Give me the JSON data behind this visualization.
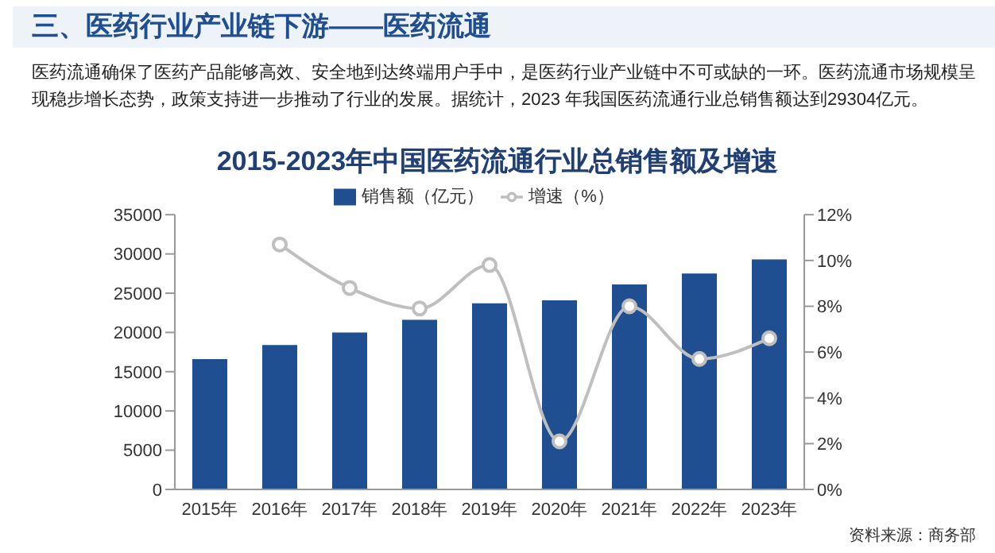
{
  "chart_data": {
    "type": "bar",
    "title": "2015-2023年中国医药流通行业总销售额及增速",
    "annotations": [
      "三、医药行业产业链下游——医药流通",
      "医药流通确保了医药产品能够高效、安全地到达终端用户手中，是医药行业产业链中不可或缺的一环。医药流通市场规模呈现稳步增长态势，政策支持进一步推动了行业的发展。据统计，2023 年我国医药流通行业总销售额达到29304亿元。",
      "资料来源：商务部"
    ],
    "categories": [
      "2015年",
      "2016年",
      "2017年",
      "2018年",
      "2019年",
      "2020年",
      "2021年",
      "2022年",
      "2023年"
    ],
    "series": [
      {
        "name": "销售额（亿元）",
        "color": "#1f4e91",
        "values": [
          16600,
          18400,
          20000,
          21600,
          23700,
          24100,
          26100,
          27500,
          29300
        ]
      },
      {
        "name": "增速（%）",
        "type": "line",
        "axis": "y2",
        "color": "#bfbfbf",
        "marker": "circle",
        "values": [
          null,
          10.7,
          8.8,
          7.9,
          9.8,
          2.1,
          8.0,
          5.7,
          6.6
        ]
      }
    ],
    "ylim": [
      0,
      35000
    ],
    "yticks": [
      0,
      5000,
      10000,
      15000,
      20000,
      25000,
      30000,
      35000
    ],
    "y2lim": [
      0,
      12
    ],
    "y2ticks": [
      {
        "value": 0,
        "label": "0%"
      },
      {
        "value": 2,
        "label": "2%"
      },
      {
        "value": 4,
        "label": "4%"
      },
      {
        "value": 6,
        "label": "6%"
      },
      {
        "value": 8,
        "label": "8%"
      },
      {
        "value": 10,
        "label": "10%"
      },
      {
        "value": 12,
        "label": "12%"
      }
    ],
    "legend": "top",
    "grid": false
  }
}
